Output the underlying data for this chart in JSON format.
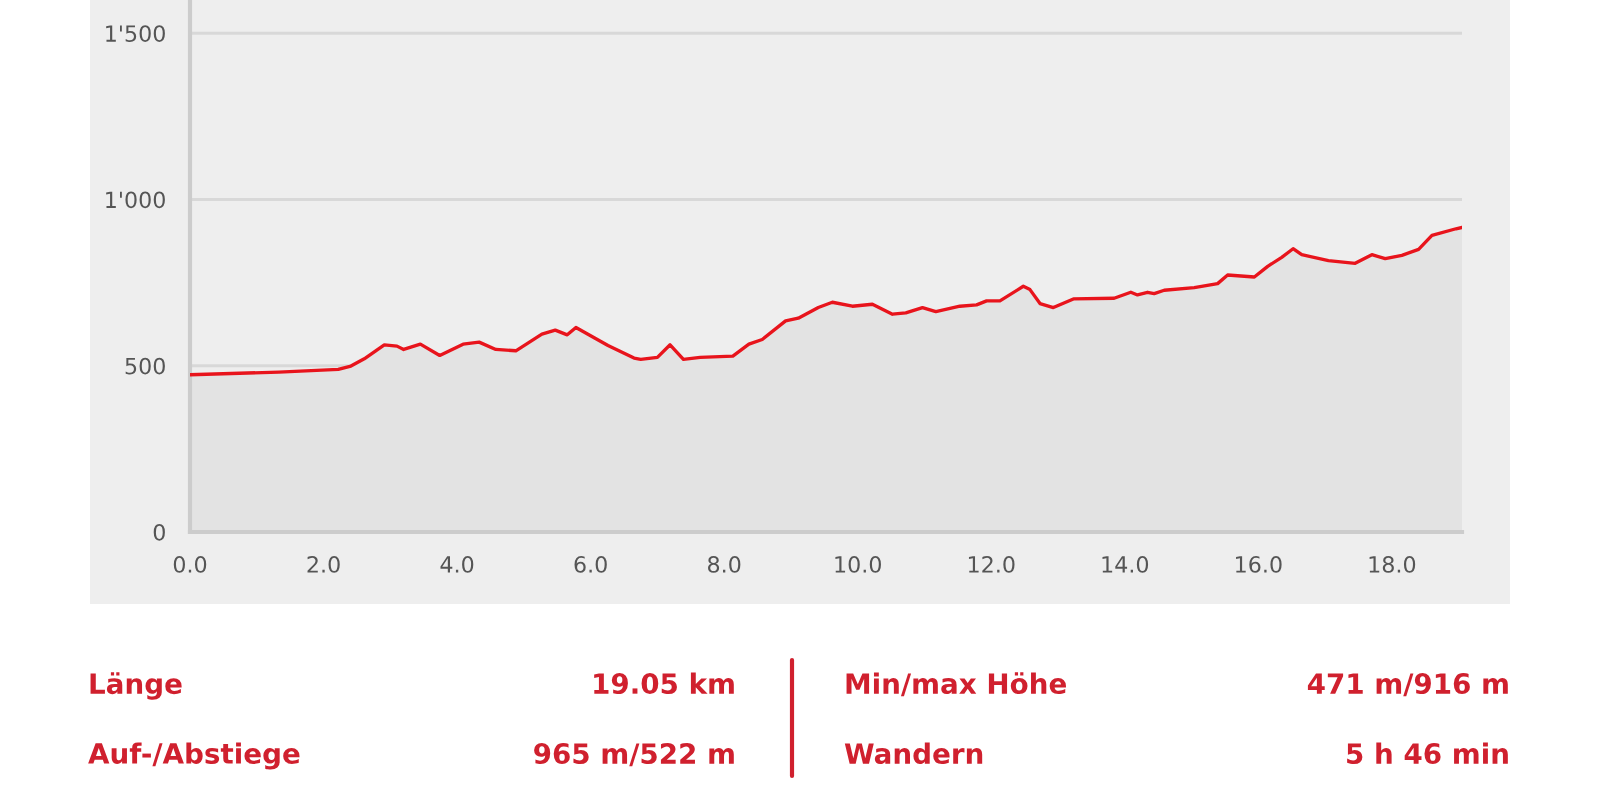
{
  "chart_data": {
    "type": "area",
    "x": [
      0,
      1.33,
      2.22,
      2.41,
      2.61,
      2.91,
      3.1,
      3.2,
      3.45,
      3.74,
      4.09,
      4.33,
      4.58,
      4.88,
      5.27,
      5.47,
      5.65,
      5.78,
      6.26,
      6.65,
      6.75,
      7.0,
      7.19,
      7.39,
      7.64,
      8.13,
      8.37,
      8.57,
      8.92,
      9.11,
      9.41,
      9.62,
      9.92,
      10.22,
      10.52,
      10.72,
      10.97,
      11.17,
      11.53,
      11.78,
      11.93,
      12.13,
      12.48,
      12.58,
      12.73,
      12.93,
      13.23,
      13.84,
      14.09,
      14.19,
      14.34,
      14.44,
      14.59,
      15.04,
      15.39,
      15.54,
      15.94,
      16.14,
      16.35,
      16.52,
      16.65,
      17.05,
      17.45,
      17.7,
      17.9,
      18.15,
      18.4,
      18.6,
      18.96,
      19.05
    ],
    "series": [
      {
        "color": "#e8141c",
        "values": [
          473,
          481,
          489,
          499,
          521,
          563,
          559,
          549,
          565,
          531,
          565,
          571,
          549,
          545,
          595,
          607,
          593,
          615,
          561,
          523,
          519,
          525,
          563,
          519,
          525,
          529,
          565,
          579,
          635,
          643,
          675,
          691,
          679,
          685,
          655,
          659,
          675,
          663,
          679,
          683,
          695,
          695,
          739,
          729,
          687,
          675,
          701,
          703,
          721,
          713,
          721,
          717,
          727,
          735,
          747,
          773,
          767,
          799,
          826,
          852,
          834,
          816,
          808,
          834,
          822,
          832,
          850,
          892,
          912,
          916
        ]
      }
    ],
    "xlim": [
      0,
      19.05
    ],
    "ylim": [
      0,
      1600
    ],
    "xticks": [
      {
        "value": 0,
        "label": "0.0"
      },
      {
        "value": 2,
        "label": "2.0"
      },
      {
        "value": 4,
        "label": "4.0"
      },
      {
        "value": 6,
        "label": "6.0"
      },
      {
        "value": 8,
        "label": "8.0"
      },
      {
        "value": 10,
        "label": "10.0"
      },
      {
        "value": 12,
        "label": "12.0"
      },
      {
        "value": 14,
        "label": "14.0"
      },
      {
        "value": 16,
        "label": "16.0"
      },
      {
        "value": 18,
        "label": "18.0"
      }
    ],
    "yticks": [
      0,
      500,
      {
        "value": 1000,
        "label": "1'000"
      },
      {
        "value": 1500,
        "label": "1'500"
      }
    ],
    "grid": "y",
    "legend": false,
    "annotations": [
      "Länge",
      "19.05 km",
      "Min/max Höhe",
      "471 m/916 m",
      "Auf-/Abstiege",
      "965 m/522 m",
      "Wandern",
      "5 h 46 min"
    ]
  }
}
